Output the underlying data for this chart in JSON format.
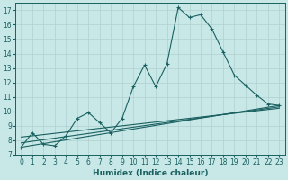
{
  "xlabel": "Humidex (Indice chaleur)",
  "background_color": "#c8e8e8",
  "grid_color": "#b0d0d0",
  "line_color": "#1a6060",
  "xlim": [
    -0.5,
    23.5
  ],
  "ylim": [
    7,
    17.5
  ],
  "xticks": [
    0,
    1,
    2,
    3,
    4,
    5,
    6,
    7,
    8,
    9,
    10,
    11,
    12,
    13,
    14,
    15,
    16,
    17,
    18,
    19,
    20,
    21,
    22,
    23
  ],
  "yticks": [
    7,
    8,
    9,
    10,
    11,
    12,
    13,
    14,
    15,
    16,
    17
  ],
  "curve1_x": [
    0,
    1,
    2,
    3,
    4,
    5,
    6,
    7,
    8,
    9,
    10,
    11,
    12,
    13,
    14,
    15,
    16,
    17,
    18,
    19,
    20,
    21,
    22,
    23
  ],
  "curve1_y": [
    7.5,
    8.5,
    7.7,
    7.6,
    8.3,
    9.5,
    9.9,
    9.2,
    8.5,
    9.5,
    11.7,
    13.2,
    11.7,
    13.3,
    17.2,
    16.5,
    16.7,
    15.7,
    14.1,
    12.5,
    11.8,
    11.1,
    10.5,
    10.4
  ],
  "line2_x": [
    0,
    23
  ],
  "line2_y": [
    7.5,
    10.4
  ],
  "line3_x": [
    0,
    23
  ],
  "line3_y": [
    7.8,
    10.3
  ],
  "line4_x": [
    0,
    23
  ],
  "line4_y": [
    8.2,
    10.2
  ]
}
